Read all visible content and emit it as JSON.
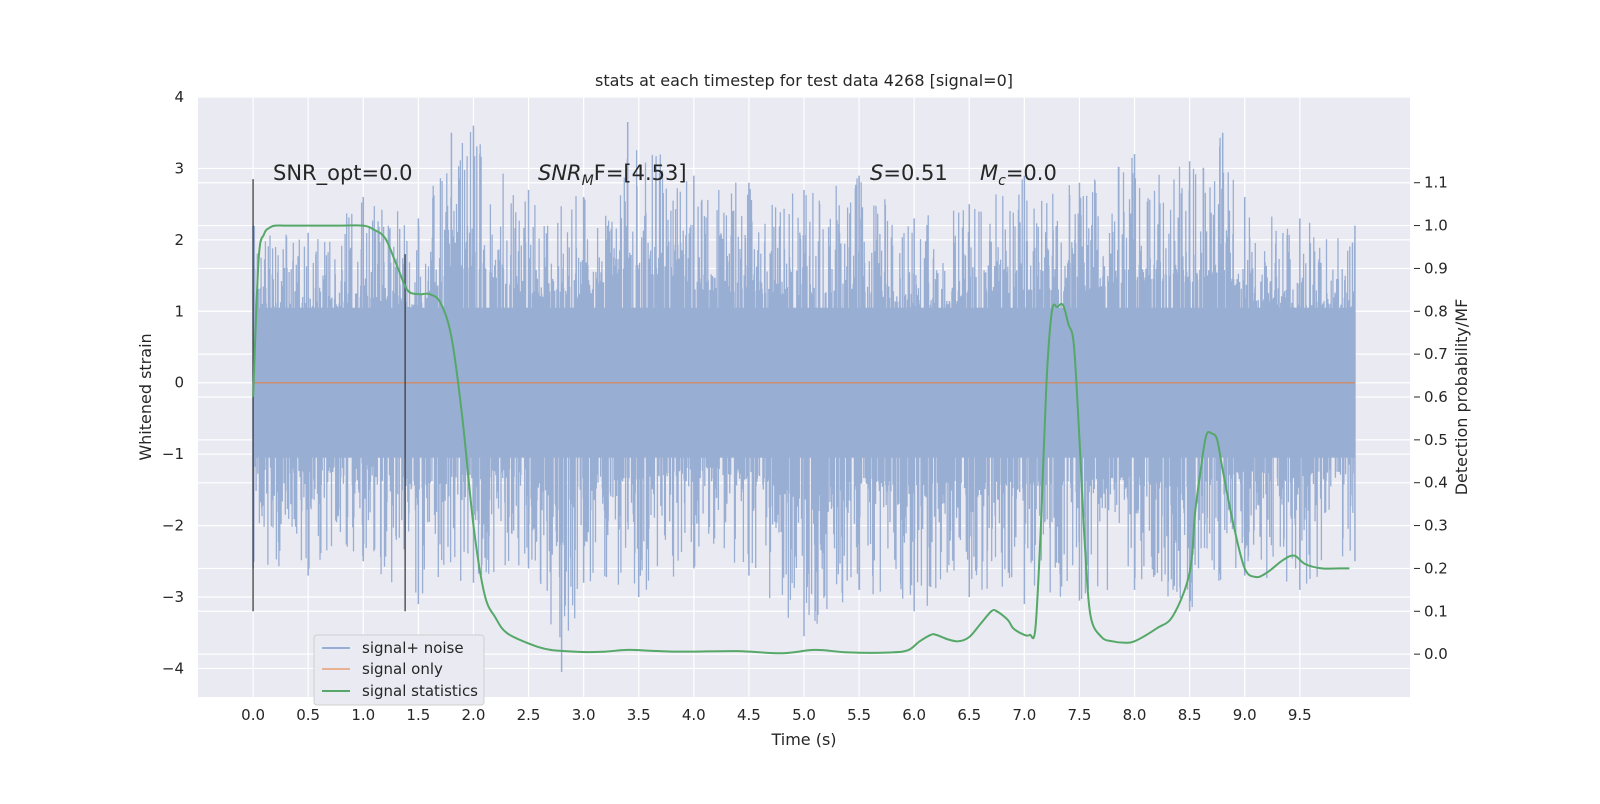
{
  "chart_data": {
    "type": "line",
    "title": "stats at each timestep for test data 4268 [signal=0]",
    "xlabel": "Time (s)",
    "ylabel": "Whitened strain",
    "y2label": "Detection probability/MF",
    "xlim": [
      -0.5,
      10.5
    ],
    "ylim": [
      -4.4,
      4.0
    ],
    "y2lim": [
      -0.1,
      1.3
    ],
    "xticks": [
      "0.0",
      "0.5",
      "1.0",
      "1.5",
      "2.0",
      "2.5",
      "3.0",
      "3.5",
      "4.0",
      "4.5",
      "5.0",
      "5.5",
      "6.0",
      "6.5",
      "7.0",
      "7.5",
      "8.0",
      "8.5",
      "9.0",
      "9.5"
    ],
    "yticks": [
      "4",
      "3",
      "2",
      "1",
      "0",
      "−1",
      "−2",
      "−3",
      "−4"
    ],
    "y2ticks": [
      "1.1",
      "1.0",
      "0.9",
      "0.8",
      "0.7",
      "0.6",
      "0.5",
      "0.4",
      "0.3",
      "0.2",
      "0.1",
      "0.0"
    ],
    "grid": true,
    "legend_position": "lower-left",
    "annotations": {
      "snr_opt": "SNR_opt=0.0",
      "snr_mf_sym": "SNR",
      "snr_mf_sub": "M",
      "snr_mf_rest": "F=[4.53]",
      "s_sym": "S",
      "s_rest": "=0.51",
      "mc_sym": "M",
      "mc_sub": "c",
      "mc_rest": "=0.0"
    },
    "vertical_markers": [
      {
        "x": 0.0,
        "ymin": -3.2,
        "ymax": 2.85
      },
      {
        "x": 1.38,
        "ymin": -3.2,
        "ymax": 1.8
      }
    ],
    "series": [
      {
        "name": "signal+ noise",
        "color": "#99aed3",
        "x_range": [
          0.0,
          10.0
        ],
        "envelope_upper": [
          [
            0.0,
            2.2
          ],
          [
            0.5,
            2.1
          ],
          [
            1.0,
            2.6
          ],
          [
            1.5,
            2.3
          ],
          [
            1.8,
            3.5
          ],
          [
            2.0,
            3.6
          ],
          [
            2.5,
            2.7
          ],
          [
            3.0,
            2.6
          ],
          [
            3.4,
            3.65
          ],
          [
            4.0,
            2.9
          ],
          [
            4.5,
            2.8
          ],
          [
            5.0,
            2.7
          ],
          [
            5.5,
            2.9
          ],
          [
            6.0,
            2.3
          ],
          [
            6.5,
            2.5
          ],
          [
            7.0,
            2.9
          ],
          [
            7.5,
            2.8
          ],
          [
            8.0,
            3.2
          ],
          [
            8.5,
            3.1
          ],
          [
            8.8,
            3.5
          ],
          [
            9.0,
            2.6
          ],
          [
            9.5,
            2.3
          ],
          [
            10.0,
            2.2
          ]
        ],
        "envelope_lower": [
          [
            0.0,
            -2.6
          ],
          [
            0.5,
            -2.7
          ],
          [
            1.0,
            -2.5
          ],
          [
            1.5,
            -3.1
          ],
          [
            2.0,
            -2.8
          ],
          [
            2.5,
            -2.6
          ],
          [
            2.8,
            -4.05
          ],
          [
            3.0,
            -2.8
          ],
          [
            3.5,
            -3.0
          ],
          [
            4.0,
            -2.6
          ],
          [
            4.5,
            -2.7
          ],
          [
            5.0,
            -3.55
          ],
          [
            5.5,
            -2.9
          ],
          [
            6.0,
            -3.2
          ],
          [
            6.5,
            -3.0
          ],
          [
            7.0,
            -3.1
          ],
          [
            7.5,
            -3.05
          ],
          [
            8.0,
            -2.9
          ],
          [
            8.5,
            -3.2
          ],
          [
            9.0,
            -2.7
          ],
          [
            9.5,
            -2.9
          ],
          [
            10.0,
            -2.5
          ]
        ]
      },
      {
        "name": "signal only",
        "color": "#dd8452",
        "x": [
          0.0,
          10.0
        ],
        "y": [
          0.0,
          0.0
        ]
      },
      {
        "name": "signal statistics",
        "color": "#55a868",
        "axis": "right",
        "x": [
          0.0,
          0.05,
          0.1,
          0.15,
          0.2,
          0.3,
          0.5,
          0.8,
          1.0,
          1.1,
          1.2,
          1.3,
          1.4,
          1.5,
          1.6,
          1.7,
          1.8,
          1.9,
          2.0,
          2.1,
          2.2,
          2.3,
          2.5,
          2.7,
          3.0,
          3.2,
          3.4,
          3.6,
          3.8,
          4.0,
          4.4,
          4.8,
          5.1,
          5.4,
          5.8,
          5.95,
          6.05,
          6.15,
          6.2,
          6.3,
          6.4,
          6.5,
          6.6,
          6.7,
          6.75,
          6.85,
          6.9,
          7.0,
          7.05,
          7.1,
          7.15,
          7.2,
          7.25,
          7.3,
          7.35,
          7.4,
          7.45,
          7.5,
          7.55,
          7.6,
          7.7,
          7.8,
          7.9,
          8.0,
          8.2,
          8.35,
          8.5,
          8.55,
          8.6,
          8.65,
          8.7,
          8.75,
          8.8,
          8.9,
          9.0,
          9.1,
          9.2,
          9.35,
          9.45,
          9.55,
          9.7,
          9.85,
          9.95
        ],
        "y": [
          0.6,
          0.92,
          0.98,
          0.995,
          1.0,
          1.0,
          1.0,
          1.0,
          1.0,
          0.99,
          0.97,
          0.91,
          0.85,
          0.84,
          0.84,
          0.82,
          0.74,
          0.55,
          0.3,
          0.14,
          0.085,
          0.05,
          0.025,
          0.01,
          0.005,
          0.006,
          0.01,
          0.008,
          0.006,
          0.006,
          0.007,
          0.002,
          0.01,
          0.004,
          0.004,
          0.01,
          0.03,
          0.045,
          0.045,
          0.035,
          0.03,
          0.04,
          0.07,
          0.1,
          0.1,
          0.08,
          0.06,
          0.045,
          0.045,
          0.06,
          0.3,
          0.63,
          0.8,
          0.81,
          0.815,
          0.77,
          0.72,
          0.5,
          0.25,
          0.09,
          0.04,
          0.03,
          0.027,
          0.03,
          0.06,
          0.09,
          0.19,
          0.33,
          0.43,
          0.51,
          0.515,
          0.5,
          0.43,
          0.3,
          0.2,
          0.18,
          0.19,
          0.22,
          0.23,
          0.21,
          0.2,
          0.2,
          0.2
        ]
      }
    ]
  }
}
